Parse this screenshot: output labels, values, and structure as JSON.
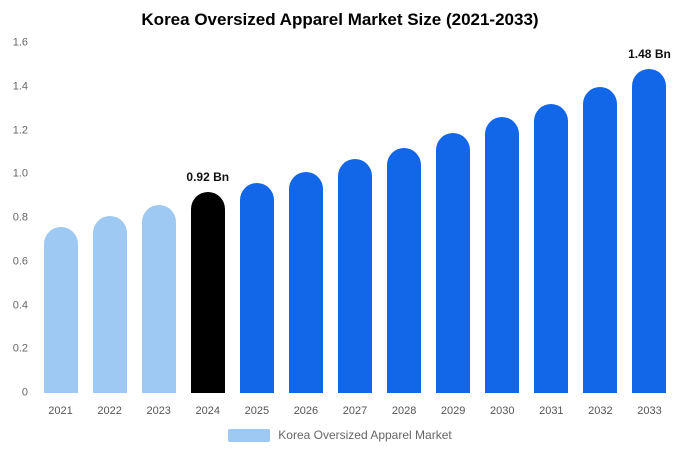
{
  "title": "Korea Oversized Apparel Market Size (2021-2033)",
  "legend": {
    "label": "Korea Oversized Apparel Market"
  },
  "colors": {
    "bar_light": "#9EC9F3",
    "bar_primary": "#1266E8",
    "bar_highlight": "#000000",
    "axis_text": "#666666",
    "background": "#FFFFFF"
  },
  "chart_data": {
    "type": "bar",
    "title": "Korea Oversized Apparel Market Size (2021-2033)",
    "categories": [
      "2021",
      "2022",
      "2023",
      "2024",
      "2025",
      "2026",
      "2027",
      "2028",
      "2029",
      "2030",
      "2031",
      "2032",
      "2033"
    ],
    "values": [
      0.76,
      0.81,
      0.86,
      0.92,
      0.96,
      1.01,
      1.07,
      1.12,
      1.19,
      1.26,
      1.32,
      1.4,
      1.48
    ],
    "unit": "Bn",
    "ylim": [
      0,
      1.6
    ],
    "ytick_labels": [
      "0",
      "0.2",
      "0.4",
      "0.6",
      "0.8",
      "1.0",
      "1.2",
      "1.4",
      "1.6"
    ],
    "ytick_values": [
      0,
      0.2,
      0.4,
      0.6,
      0.8,
      1.0,
      1.2,
      1.4,
      1.6
    ],
    "grid": false,
    "legend_position": "bottom",
    "legend_entries": [
      "Korea Oversized Apparel Market"
    ],
    "light_indices": [
      0,
      1,
      2
    ],
    "highlight_indices": [
      3
    ],
    "annotations": [
      {
        "index": 3,
        "category": "2024",
        "text": "0.92 Bn"
      },
      {
        "index": 12,
        "category": "2033",
        "text": "1.48 Bn"
      }
    ]
  }
}
